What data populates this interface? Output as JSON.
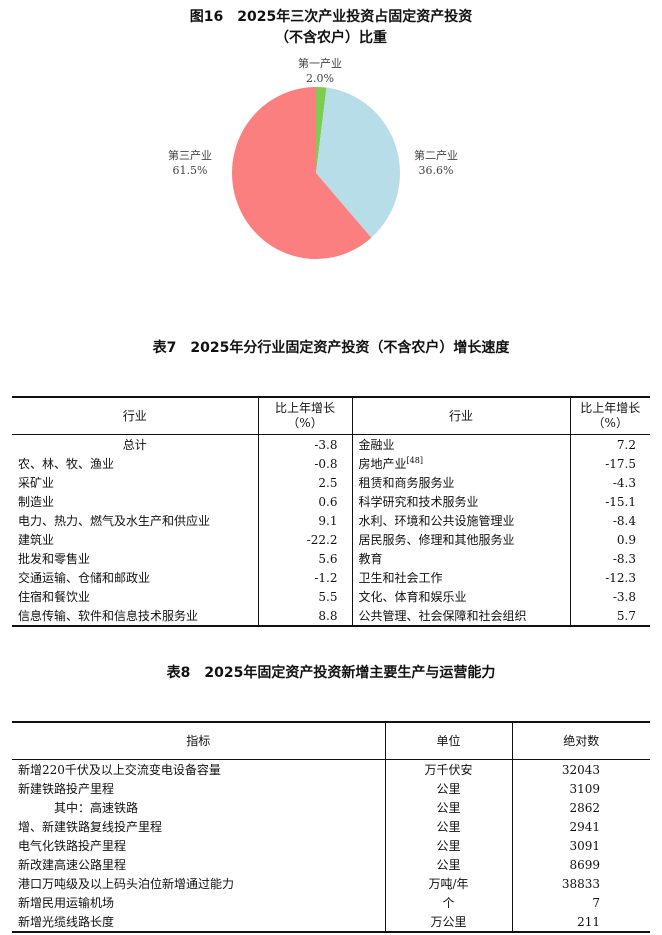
{
  "figure16": {
    "title_line1": "图16　2025年三次产业投资占固定资产投资",
    "title_line2": "（不含农户）比重",
    "chart_data": {
      "type": "pie",
      "title": "图16　2025年三次产业投资占固定资产投资（不含农户）比重",
      "slices": [
        {
          "label": "第一产业",
          "value": 2.0,
          "display": "2.0%",
          "color": "#7ccd4f"
        },
        {
          "label": "第二产业",
          "value": 36.6,
          "display": "36.6%",
          "color": "#b7dde8"
        },
        {
          "label": "第三产业",
          "value": 61.5,
          "display": "61.5%",
          "color": "#fb7f7f"
        }
      ]
    }
  },
  "table7": {
    "title": "表7　2025年分行业固定资产投资（不含农户）增长速度",
    "headers": [
      "行业",
      "比上年增长",
      "（%）"
    ],
    "left": [
      {
        "name": "总计",
        "value": "-3.8"
      },
      {
        "name": "农、林、牧、渔业",
        "value": "-0.8"
      },
      {
        "name": "采矿业",
        "value": "2.5"
      },
      {
        "name": "制造业",
        "value": "0.6"
      },
      {
        "name": "电力、热力、燃气及水生产和供应业",
        "value": "9.1"
      },
      {
        "name": "建筑业",
        "value": "-22.2"
      },
      {
        "name": "批发和零售业",
        "value": "5.6"
      },
      {
        "name": "交通运输、仓储和邮政业",
        "value": "-1.2"
      },
      {
        "name": "住宿和餐饮业",
        "value": "5.5"
      },
      {
        "name": "信息传输、软件和信息技术服务业",
        "value": "8.8"
      }
    ],
    "right": [
      {
        "name": "金融业",
        "value": "7.2"
      },
      {
        "name": "房地产业",
        "note": "[48]",
        "value": "-17.5"
      },
      {
        "name": "租赁和商务服务业",
        "value": "-4.3"
      },
      {
        "name": "科学研究和技术服务业",
        "value": "-15.1"
      },
      {
        "name": "水利、环境和公共设施管理业",
        "value": "-8.4"
      },
      {
        "name": "居民服务、修理和其他服务业",
        "value": "0.9"
      },
      {
        "name": "教育",
        "value": "-8.3"
      },
      {
        "name": "卫生和社会工作",
        "value": "-12.3"
      },
      {
        "name": "文化、体育和娱乐业",
        "value": "-3.8"
      },
      {
        "name": "公共管理、社会保障和社会组织",
        "value": "5.7"
      }
    ]
  },
  "table8": {
    "title": "表8　2025年固定资产投资新增主要生产与运营能力",
    "headers": [
      "指标",
      "单位",
      "绝对数"
    ],
    "rows": [
      {
        "name": "新增220千伏及以上交流变电设备容量",
        "unit": "万千伏安",
        "value": "32043"
      },
      {
        "name": "新建铁路投产里程",
        "unit": "公里",
        "value": "3109"
      },
      {
        "name": "其中：高速铁路",
        "unit": "公里",
        "value": "2862",
        "indent": true
      },
      {
        "name": "增、新建铁路复线投产里程",
        "unit": "公里",
        "value": "2941"
      },
      {
        "name": "电气化铁路投产里程",
        "unit": "公里",
        "value": "3091"
      },
      {
        "name": "新改建高速公路里程",
        "unit": "公里",
        "value": "8699"
      },
      {
        "name": "港口万吨级及以上码头泊位新增通过能力",
        "unit": "万吨/年",
        "value": "38833"
      },
      {
        "name": "新增民用运输机场",
        "unit": "个",
        "value": "7"
      },
      {
        "name": "新增光缆线路长度",
        "unit": "万公里",
        "value": "211"
      }
    ]
  }
}
